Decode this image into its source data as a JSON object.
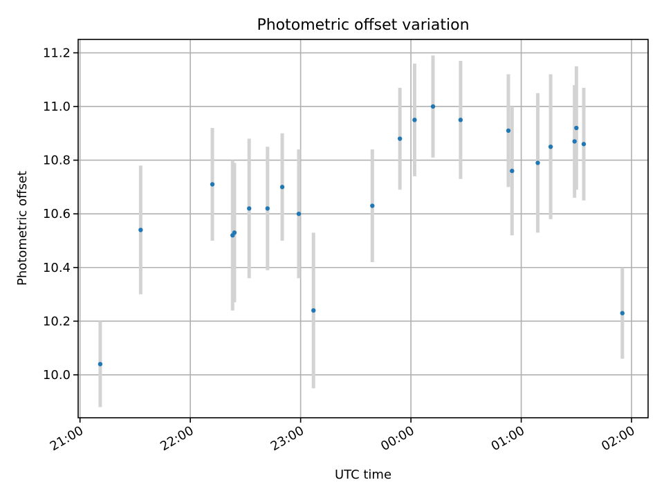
{
  "chart_data": {
    "type": "scatter",
    "title": "Photometric offset variation",
    "xlabel": "UTC time",
    "ylabel": "Photometric offset",
    "x_unit": "UTC time (hours after midnight; values above 24 are the next day)",
    "xlim": [
      "20:59",
      "02:09"
    ],
    "ylim": [
      9.84,
      11.25
    ],
    "xticks": [
      "21:00",
      "22:00",
      "23:00",
      "00:00",
      "01:00",
      "02:00"
    ],
    "yticks": [
      "10.0",
      "10.2",
      "10.4",
      "10.6",
      "10.8",
      "11.0",
      "11.2"
    ],
    "grid": true,
    "errorbar_color": "#d3d3d3",
    "marker_color": "#1f77b4",
    "points": [
      {
        "time": "21:11",
        "y": 10.04,
        "err": 0.16
      },
      {
        "time": "21:33",
        "y": 10.54,
        "err": 0.24
      },
      {
        "time": "22:12",
        "y": 10.71,
        "err": 0.21
      },
      {
        "time": "22:23",
        "y": 10.52,
        "err": 0.28
      },
      {
        "time": "22:24",
        "y": 10.53,
        "err": 0.26
      },
      {
        "time": "22:32",
        "y": 10.62,
        "err": 0.26
      },
      {
        "time": "22:42",
        "y": 10.62,
        "err": 0.23
      },
      {
        "time": "22:50",
        "y": 10.7,
        "err": 0.2
      },
      {
        "time": "22:59",
        "y": 10.6,
        "err": 0.24
      },
      {
        "time": "23:07",
        "y": 10.24,
        "err": 0.29
      },
      {
        "time": "23:39",
        "y": 10.63,
        "err": 0.21
      },
      {
        "time": "23:54",
        "y": 10.88,
        "err": 0.19
      },
      {
        "time": "00:02",
        "y": 10.95,
        "err": 0.21
      },
      {
        "time": "00:12",
        "y": 11.0,
        "err": 0.19
      },
      {
        "time": "00:27",
        "y": 10.95,
        "err": 0.22
      },
      {
        "time": "00:53",
        "y": 10.91,
        "err": 0.21
      },
      {
        "time": "00:55",
        "y": 10.76,
        "err": 0.24
      },
      {
        "time": "01:09",
        "y": 10.79,
        "err": 0.26
      },
      {
        "time": "01:16",
        "y": 10.85,
        "err": 0.27
      },
      {
        "time": "01:29",
        "y": 10.87,
        "err": 0.21
      },
      {
        "time": "01:30",
        "y": 10.92,
        "err": 0.23
      },
      {
        "time": "01:34",
        "y": 10.86,
        "err": 0.21
      },
      {
        "time": "01:55",
        "y": 10.23,
        "err": 0.17
      }
    ]
  }
}
